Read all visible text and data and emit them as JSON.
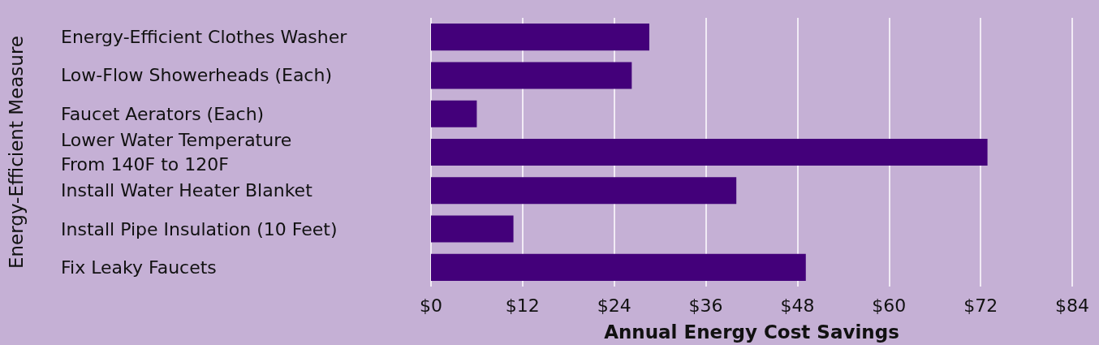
{
  "chart_data": {
    "type": "bar",
    "orientation": "horizontal",
    "xlabel": "Annual Energy Cost Savings",
    "ylabel": "Energy-Efficient Measure",
    "categories": [
      "Energy-Efficient Clothes Washer",
      "Low-Flow Showerheads (Each)",
      "Faucet Aerators (Each)",
      "Lower Water Temperature\nFrom 140F to 120F",
      "Install Water Heater Blanket",
      "Install Pipe Insulation (10 Feet)",
      "Fix Leaky Faucets"
    ],
    "values": [
      28.6,
      26.3,
      6.0,
      72.9,
      40.0,
      10.8,
      49.1
    ],
    "color": "#43007a",
    "xlim": [
      0,
      84
    ],
    "xticks": [
      {
        "value": 0,
        "label": "$0"
      },
      {
        "value": 12,
        "label": "$12"
      },
      {
        "value": 24,
        "label": "$24"
      },
      {
        "value": 36,
        "label": "$36"
      },
      {
        "value": 48,
        "label": "$48"
      },
      {
        "value": 60,
        "label": "$60"
      },
      {
        "value": 72,
        "label": "$72"
      },
      {
        "value": 84,
        "label": "$84"
      }
    ],
    "grid": "x"
  }
}
